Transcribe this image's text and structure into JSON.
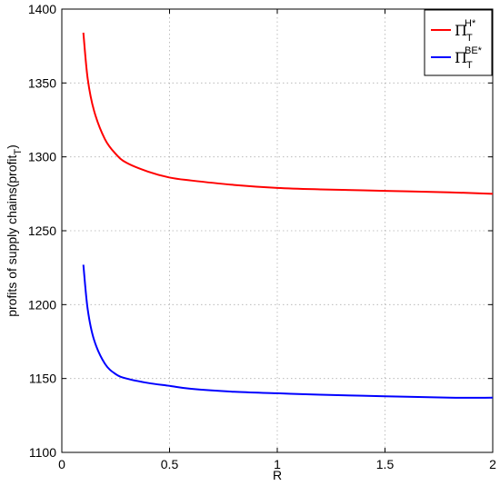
{
  "chart_data": {
    "type": "line",
    "xlabel": "R",
    "ylabel": "profits of supply chains(profit",
    "ylabel_sub": "T",
    "ylabel_end": ")",
    "xlim": [
      0,
      2
    ],
    "ylim": [
      1100,
      1400
    ],
    "x_ticks": [
      0,
      0.5,
      1,
      1.5,
      2
    ],
    "x_tick_labels": [
      "0",
      "0.5",
      "1",
      "1.5",
      "2"
    ],
    "y_ticks": [
      1100,
      1150,
      1200,
      1250,
      1300,
      1350,
      1400
    ],
    "y_tick_labels": [
      "1100",
      "1150",
      "1200",
      "1250",
      "1300",
      "1350",
      "1400"
    ],
    "grid": true,
    "legend_position": "top-right",
    "series": [
      {
        "name": "Π",
        "name_sup": "H*",
        "name_sub": "T",
        "color": "#ff0000",
        "x": [
          0.1,
          0.12,
          0.15,
          0.2,
          0.25,
          0.3,
          0.4,
          0.5,
          0.6,
          0.8,
          1.0,
          1.2,
          1.5,
          1.8,
          2.0
        ],
        "y": [
          1384,
          1353,
          1331,
          1312,
          1302,
          1296,
          1290,
          1286,
          1284,
          1281,
          1279,
          1278,
          1277,
          1276,
          1275
        ]
      },
      {
        "name": "Π",
        "name_sup": "BE*",
        "name_sub": "T",
        "color": "#0000ff",
        "x": [
          0.1,
          0.12,
          0.15,
          0.2,
          0.25,
          0.3,
          0.4,
          0.5,
          0.6,
          0.8,
          1.0,
          1.2,
          1.5,
          1.8,
          2.0
        ],
        "y": [
          1227,
          1197,
          1176,
          1160,
          1153,
          1150,
          1147,
          1145,
          1143,
          1141,
          1140,
          1139,
          1138,
          1137,
          1137
        ]
      }
    ]
  }
}
